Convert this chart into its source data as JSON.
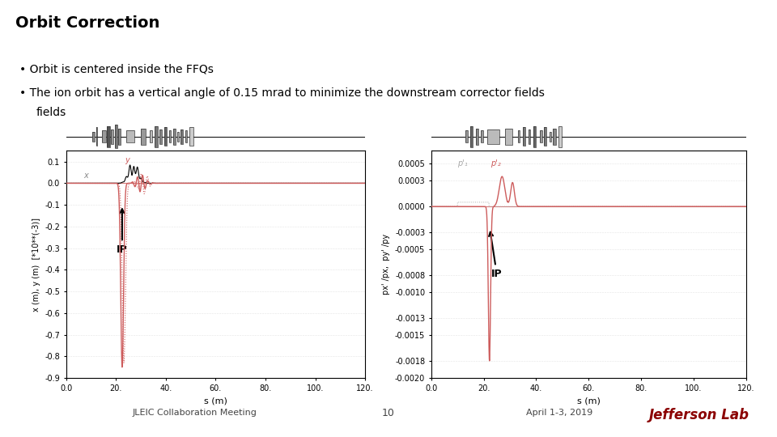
{
  "title": "Orbit Correction",
  "title_color": "#000000",
  "header_bar_color": "#8B0000",
  "bg_color": "#ffffff",
  "bullet1": "Orbit is centered inside the FFQs",
  "bullet2": "The ion orbit has a vertical angle of 0.15 mrad to minimize the downstream corrector fields",
  "footer_left": "JLEIC Collaboration Meeting",
  "footer_center": "10",
  "footer_right": "April 1-3, 2019",
  "left_ylabel": "x (m), y (m)  [*10**(-3)]",
  "right_ylabel": "px' /px,  py' /py",
  "xlabel": "s (m)",
  "left_ylim": [
    -0.9,
    0.15
  ],
  "right_ylim": [
    -0.002,
    0.00065
  ],
  "xlim": [
    0.0,
    120.0
  ],
  "left_yticks": [
    0.1,
    0.0,
    -0.1,
    -0.2,
    -0.3,
    -0.4,
    -0.5,
    -0.6,
    -0.7,
    -0.8,
    -0.9
  ],
  "right_yticks": [
    0.0005,
    0.0003,
    0.0,
    -0.0003,
    -0.0005,
    -0.0008,
    -0.001,
    -0.0013,
    -0.0015,
    -0.0018,
    -0.002
  ],
  "xticks": [
    0.0,
    20.0,
    40.0,
    60.0,
    80.0,
    100.0,
    120.0
  ],
  "plot_bg": "#ffffff",
  "line_red": "#cd5c5c",
  "line_dark": "#8B0000"
}
